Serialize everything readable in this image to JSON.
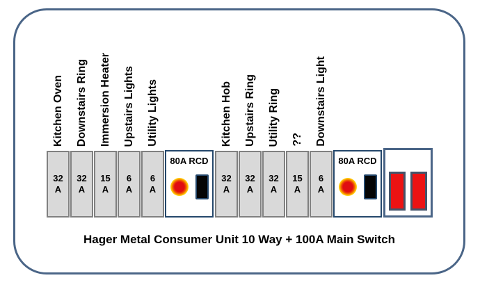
{
  "unit": {
    "caption": "Hager Metal Consumer Unit 10 Way + 100A Main Switch",
    "circuits": [
      {
        "label": "Kitchen Oven",
        "amps": "32",
        "unit": "A"
      },
      {
        "label": "Downstairs Ring",
        "amps": "32",
        "unit": "A"
      },
      {
        "label": "Immersion Heater",
        "amps": "15",
        "unit": "A"
      },
      {
        "label": "Upstairs Lights",
        "amps": "6",
        "unit": "A"
      },
      {
        "label": "Utility Lights",
        "amps": "6",
        "unit": "A"
      },
      {
        "label": "Kitchen Hob",
        "amps": "32",
        "unit": "A"
      },
      {
        "label": "Upstairs Ring",
        "amps": "32",
        "unit": "A"
      },
      {
        "label": "Utility Ring",
        "amps": "32",
        "unit": "A"
      },
      {
        "label": "??",
        "amps": "15",
        "unit": "A"
      },
      {
        "label": "Downstairs Light",
        "amps": "6",
        "unit": "A"
      }
    ],
    "rcd1": {
      "label": "80A RCD"
    },
    "rcd2": {
      "label": "80A RCD"
    },
    "colors": {
      "frame_border": "#4a6587",
      "breaker_fill": "#d9d9d9",
      "breaker_border": "#808080",
      "rcd_border": "#24476b",
      "rcd_button_red": "#e00d12",
      "rcd_button_glow": "#ffc800",
      "rcd_switch_black": "#050505",
      "main_switch_red": "#ec1313",
      "main_switch_border": "#44546a"
    }
  }
}
